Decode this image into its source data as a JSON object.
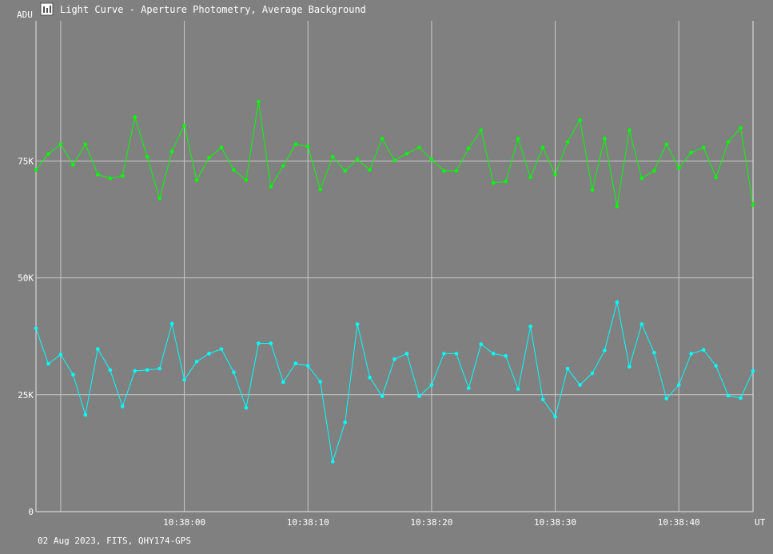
{
  "window": {
    "title": "Light Curve - Aperture Photometry, Average Background",
    "icon": "light-curve-app-icon"
  },
  "footer": {
    "info": "02 Aug 2023, FITS, QHY174-GPS"
  },
  "colors": {
    "background": "#808080",
    "grid": "#c8c8c8",
    "axis": "#e6e6e6",
    "text": "#ffffff",
    "series_upper": "#00ff00",
    "series_lower": "#00ffff"
  },
  "chart_data": {
    "type": "line",
    "ylabel": "ADU",
    "xlabel": "UT",
    "ylim": [
      0,
      105000
    ],
    "xlim_seconds_after_10_37_50": [
      -2,
      56
    ],
    "y_ticks": [
      {
        "value": 0,
        "label": "0"
      },
      {
        "value": 25000,
        "label": "25K"
      },
      {
        "value": 50000,
        "label": "50K"
      },
      {
        "value": 75000,
        "label": "75K"
      }
    ],
    "x_ticks": [
      {
        "value": 0,
        "label": ""
      },
      {
        "value": 10,
        "label": "10:38:00"
      },
      {
        "value": 20,
        "label": "10:38:10"
      },
      {
        "value": 30,
        "label": "10:38:20"
      },
      {
        "value": 40,
        "label": "10:38:30"
      },
      {
        "value": 50,
        "label": "10:38:40"
      }
    ],
    "grid": true,
    "x": [
      -2,
      -1,
      0,
      1,
      2,
      3,
      4,
      5,
      6,
      7,
      8,
      9,
      10,
      11,
      12,
      13,
      14,
      15,
      16,
      17,
      18,
      19,
      20,
      21,
      22,
      23,
      24,
      25,
      26,
      27,
      28,
      29,
      30,
      31,
      32,
      33,
      34,
      35,
      36,
      37,
      38,
      39,
      40,
      41,
      42,
      43,
      44,
      45,
      46,
      47,
      48,
      49,
      50,
      51,
      52,
      53,
      54,
      55,
      56
    ],
    "series": [
      {
        "values": [
          73100,
          76500,
          78600,
          74200,
          78600,
          72100,
          71300,
          71800,
          84400,
          75900,
          67000,
          77100,
          82600,
          70900,
          75700,
          77900,
          73100,
          70900,
          87700,
          69500,
          74000,
          78600,
          78100,
          68900,
          75900,
          72900,
          75400,
          73100,
          79800,
          75100,
          76600,
          77900,
          75300,
          72900,
          72900,
          77700,
          81600,
          70300,
          70600,
          79800,
          71500,
          77900,
          72100,
          79100,
          83800,
          68800,
          79800,
          65300,
          81600,
          71300,
          72900,
          78600,
          73500,
          76800,
          77900,
          71500,
          79100,
          82100,
          65600
        ]
      },
      {
        "values": [
          39200,
          31600,
          33600,
          29300,
          20700,
          34800,
          30300,
          22500,
          30100,
          30300,
          30600,
          40200,
          28200,
          32100,
          33800,
          34800,
          29800,
          22200,
          36000,
          36000,
          27700,
          31700,
          31200,
          27800,
          10700,
          19100,
          40100,
          28700,
          24700,
          32600,
          33800,
          24700,
          27100,
          33800,
          33800,
          26400,
          35800,
          33800,
          33300,
          26200,
          39600,
          24000,
          20300,
          30600,
          27100,
          29600,
          34500,
          44800,
          31000,
          40100,
          34000,
          24200,
          27100,
          33800,
          34600,
          31200,
          24800,
          24300,
          30100
        ]
      }
    ]
  }
}
